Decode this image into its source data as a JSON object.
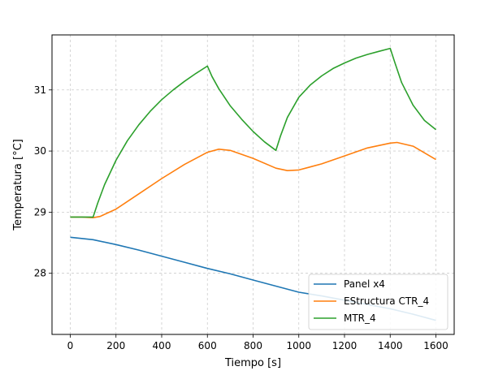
{
  "chart_data": {
    "type": "line",
    "xlabel": "Tiempo [s]",
    "ylabel": "Temperatura [°C]",
    "xlim": [
      -80,
      1680
    ],
    "ylim": [
      27.0,
      31.9
    ],
    "xticks": [
      0,
      200,
      400,
      600,
      800,
      1000,
      1200,
      1400,
      1600
    ],
    "yticks": [
      28,
      29,
      30,
      31
    ],
    "grid": true,
    "legend_position": "bottom-right",
    "series": [
      {
        "name": "Panel x4",
        "color": "#1f77b4",
        "x": [
          0,
          100,
          200,
          300,
          400,
          500,
          600,
          700,
          800,
          900,
          1000,
          1100,
          1200,
          1300,
          1400,
          1500,
          1600
        ],
        "y": [
          28.59,
          28.55,
          28.47,
          28.38,
          28.28,
          28.18,
          28.08,
          27.99,
          27.89,
          27.79,
          27.69,
          27.63,
          27.56,
          27.49,
          27.42,
          27.33,
          27.23
        ]
      },
      {
        "name": "EStructura CTR_4",
        "color": "#ff7f0e",
        "x": [
          0,
          50,
          100,
          130,
          200,
          300,
          400,
          500,
          600,
          650,
          700,
          800,
          900,
          950,
          1000,
          1100,
          1200,
          1300,
          1400,
          1430,
          1500,
          1600
        ],
        "y": [
          28.92,
          28.92,
          28.91,
          28.93,
          29.05,
          29.3,
          29.55,
          29.78,
          29.98,
          30.03,
          30.01,
          29.88,
          29.72,
          29.68,
          29.69,
          29.79,
          29.92,
          30.05,
          30.13,
          30.14,
          30.08,
          29.86
        ]
      },
      {
        "name": "MTR_4",
        "color": "#2ca02c",
        "x": [
          0,
          50,
          100,
          120,
          150,
          200,
          250,
          300,
          350,
          400,
          450,
          500,
          550,
          600,
          620,
          650,
          700,
          750,
          800,
          850,
          900,
          920,
          950,
          1000,
          1050,
          1100,
          1150,
          1200,
          1250,
          1300,
          1350,
          1400,
          1420,
          1450,
          1500,
          1550,
          1600
        ],
        "y": [
          28.92,
          28.92,
          28.92,
          29.15,
          29.45,
          29.85,
          30.17,
          30.43,
          30.65,
          30.84,
          31.0,
          31.14,
          31.27,
          31.39,
          31.22,
          31.02,
          30.74,
          30.52,
          30.32,
          30.15,
          30.01,
          30.25,
          30.55,
          30.88,
          31.08,
          31.23,
          31.35,
          31.44,
          31.52,
          31.58,
          31.63,
          31.68,
          31.45,
          31.12,
          30.75,
          30.5,
          30.35
        ]
      }
    ]
  }
}
